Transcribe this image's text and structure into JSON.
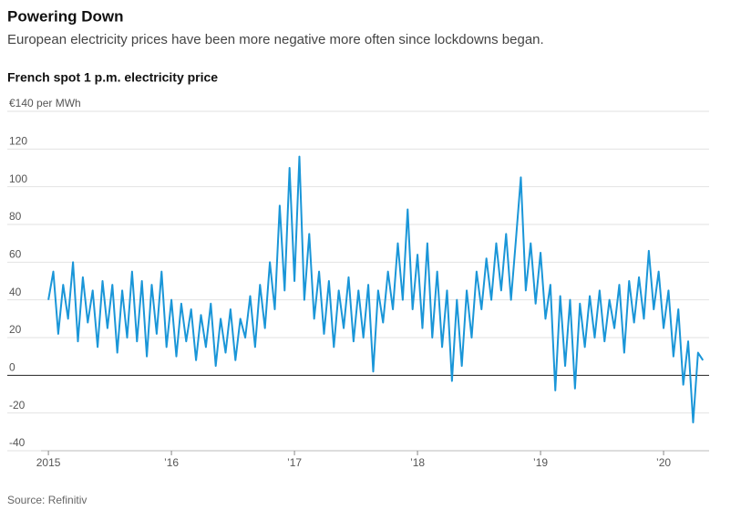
{
  "chart_data": {
    "type": "line",
    "title": "Powering Down",
    "subtitle": "European electricity prices have been more negative more often since lockdowns began.",
    "chart_title": "French spot 1 p.m. electricity price",
    "source": "Source: Refinitiv",
    "x": [
      2015,
      2015.04,
      2015.08,
      2015.12,
      2015.16,
      2015.2,
      2015.24,
      2015.28,
      2015.32,
      2015.36,
      2015.4,
      2015.44,
      2015.48,
      2015.52,
      2015.56,
      2015.6,
      2015.64,
      2015.68,
      2015.72,
      2015.76,
      2015.8,
      2015.84,
      2015.88,
      2015.92,
      2015.96,
      2016,
      2016.04,
      2016.08,
      2016.12,
      2016.16,
      2016.2,
      2016.24,
      2016.28,
      2016.32,
      2016.36,
      2016.4,
      2016.44,
      2016.48,
      2016.52,
      2016.56,
      2016.6,
      2016.64,
      2016.68,
      2016.72,
      2016.76,
      2016.8,
      2016.84,
      2016.88,
      2016.92,
      2016.96,
      2017,
      2017.04,
      2017.08,
      2017.12,
      2017.16,
      2017.2,
      2017.24,
      2017.28,
      2017.32,
      2017.36,
      2017.4,
      2017.44,
      2017.48,
      2017.52,
      2017.56,
      2017.6,
      2017.64,
      2017.68,
      2017.72,
      2017.76,
      2017.8,
      2017.84,
      2017.88,
      2017.92,
      2017.96,
      2018,
      2018.04,
      2018.08,
      2018.12,
      2018.16,
      2018.2,
      2018.24,
      2018.28,
      2018.32,
      2018.36,
      2018.4,
      2018.44,
      2018.48,
      2018.52,
      2018.56,
      2018.6,
      2018.64,
      2018.68,
      2018.72,
      2018.76,
      2018.8,
      2018.84,
      2018.88,
      2018.92,
      2018.96,
      2019,
      2019.04,
      2019.08,
      2019.12,
      2019.16,
      2019.2,
      2019.24,
      2019.28,
      2019.32,
      2019.36,
      2019.4,
      2019.44,
      2019.48,
      2019.52,
      2019.56,
      2019.6,
      2019.64,
      2019.68,
      2019.72,
      2019.76,
      2019.8,
      2019.84,
      2019.88,
      2019.92,
      2019.96,
      2020,
      2020.04,
      2020.08,
      2020.12,
      2020.16,
      2020.2,
      2020.24,
      2020.28,
      2020.32
    ],
    "series": [
      {
        "name": "French spot 1 p.m. electricity price",
        "color": "#1a96d8",
        "values": [
          40,
          55,
          22,
          48,
          30,
          60,
          18,
          52,
          28,
          45,
          15,
          50,
          25,
          48,
          12,
          45,
          20,
          55,
          18,
          50,
          10,
          48,
          22,
          55,
          15,
          40,
          10,
          38,
          18,
          35,
          8,
          32,
          15,
          38,
          5,
          30,
          12,
          35,
          8,
          30,
          20,
          42,
          15,
          48,
          25,
          60,
          35,
          90,
          45,
          110,
          50,
          116,
          40,
          75,
          30,
          55,
          22,
          50,
          15,
          45,
          25,
          52,
          18,
          45,
          20,
          48,
          2,
          45,
          28,
          55,
          35,
          70,
          40,
          88,
          35,
          64,
          25,
          70,
          20,
          55,
          15,
          45,
          -3,
          40,
          5,
          45,
          20,
          55,
          35,
          62,
          40,
          70,
          45,
          75,
          40,
          72,
          105,
          45,
          70,
          38,
          65,
          30,
          48,
          -8,
          42,
          5,
          40,
          -7,
          38,
          15,
          42,
          20,
          45,
          18,
          40,
          25,
          48,
          12,
          50,
          28,
          52,
          30,
          66,
          35,
          55,
          25,
          45,
          10,
          35,
          -5,
          18,
          -25,
          12,
          8
        ]
      }
    ],
    "xlim": [
      2014.94,
      2020.37
    ],
    "xticks": [
      2015,
      {
        "value": 2016,
        "label": "’16"
      },
      {
        "value": 2017,
        "label": "’17"
      },
      {
        "value": 2018,
        "label": "’18"
      },
      {
        "value": 2019,
        "label": "’19"
      },
      {
        "value": 2020,
        "label": "’20"
      }
    ],
    "ylim": [
      -40,
      140
    ],
    "yticks": [
      -40,
      -20,
      0,
      20,
      40,
      60,
      80,
      100,
      120,
      {
        "value": 140,
        "label": "€140 per MWh"
      }
    ],
    "grid": true
  }
}
